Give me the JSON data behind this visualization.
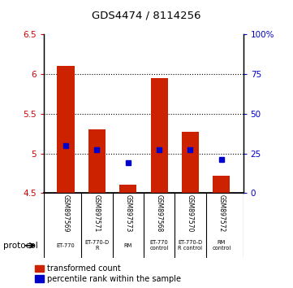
{
  "title": "GDS4474 / 8114256",
  "samples": [
    "GSM897569",
    "GSM897571",
    "GSM897573",
    "GSM897568",
    "GSM897570",
    "GSM897572"
  ],
  "bar_bottoms": [
    4.5,
    4.5,
    4.5,
    4.5,
    4.5,
    4.5
  ],
  "bar_tops": [
    6.1,
    5.3,
    4.6,
    5.95,
    5.27,
    4.72
  ],
  "percentile_values": [
    5.1,
    5.05,
    4.88,
    5.05,
    5.05,
    4.92
  ],
  "ylim_left": [
    4.5,
    6.5
  ],
  "ylim_right": [
    0,
    100
  ],
  "yticks_left": [
    4.5,
    5.0,
    5.5,
    6.0,
    6.5
  ],
  "yticks_right": [
    0,
    25,
    50,
    75,
    100
  ],
  "ytick_labels_left": [
    "4.5",
    "5",
    "5.5",
    "6",
    "6.5"
  ],
  "ytick_labels_right": [
    "0",
    "25",
    "50",
    "75",
    "100%"
  ],
  "bar_color": "#cc2200",
  "dot_color": "#0000cc",
  "bg_color": "#ffffff",
  "protocol_labels": [
    "ET-770",
    "ET-770-D\nR",
    "RM",
    "ET-770\ncontrol",
    "ET-770-D\nR control",
    "RM\ncontrol"
  ],
  "grid_color": "#000000",
  "grid_values": [
    5.0,
    5.5,
    6.0
  ],
  "legend_red_label": "transformed count",
  "legend_blue_label": "percentile rank within the sample",
  "sample_bg": "#c8c8c8",
  "protocol_bg": "#aaffaa"
}
